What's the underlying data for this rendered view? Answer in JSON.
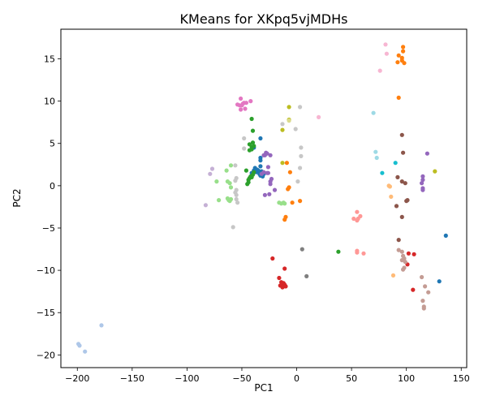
{
  "chart_data": {
    "type": "scatter",
    "title": "KMeans for XKpq5vjMDHs",
    "xlabel": "PC1",
    "ylabel": "PC2",
    "xlim": [
      -215,
      155
    ],
    "ylim": [
      -21.5,
      18.5
    ],
    "xticks": [
      -200,
      -150,
      -100,
      -50,
      0,
      50,
      100,
      150
    ],
    "yticks": [
      -20,
      -15,
      -10,
      -5,
      0,
      5,
      10,
      15
    ],
    "xtick_labels": [
      "−200",
      "−150",
      "−100",
      "−50",
      "0",
      "50",
      "100",
      "150"
    ],
    "ytick_labels": [
      "−20",
      "−15",
      "−10",
      "−5",
      "0",
      "5",
      "10",
      "15"
    ],
    "grid": false,
    "legend": false,
    "series": [
      {
        "color": "#1f77b4",
        "points": [
          [
            -33,
            5.6
          ],
          [
            -33,
            3.3
          ],
          [
            -33,
            2.3
          ],
          [
            -35,
            1.8
          ],
          [
            -37,
            1.6
          ],
          [
            -38,
            2.1
          ],
          [
            -36,
            1.9
          ],
          [
            -33,
            3.0
          ],
          [
            -33,
            1.2
          ],
          [
            -32,
            1.7
          ],
          [
            -31,
            1.1
          ],
          [
            -30,
            1.4
          ],
          [
            -34,
            1.4
          ],
          [
            -41,
            1.5
          ],
          [
            -39,
            1.8
          ],
          [
            -39,
            4.5
          ],
          [
            136,
            -5.9
          ],
          [
            130,
            -11.3
          ]
        ]
      },
      {
        "color": "#aec7e8",
        "points": [
          [
            -199,
            -18.7
          ],
          [
            -198,
            -18.9
          ],
          [
            -193,
            -19.6
          ],
          [
            -178,
            -16.5
          ]
        ]
      },
      {
        "color": "#ff7f0e",
        "points": [
          [
            -6,
            1.6
          ],
          [
            -9,
            2.7
          ],
          [
            -7,
            -0.2
          ],
          [
            -8,
            -0.4
          ],
          [
            -10,
            -3.7
          ],
          [
            -11,
            -4.0
          ],
          [
            -4,
            -2.0
          ],
          [
            3,
            -1.8
          ],
          [
            97,
            16.4
          ],
          [
            97,
            15.9
          ],
          [
            93,
            15.4
          ],
          [
            96,
            15.1
          ],
          [
            92,
            14.6
          ],
          [
            96,
            14.8
          ],
          [
            98,
            14.5
          ],
          [
            93,
            10.4
          ]
        ]
      },
      {
        "color": "#ffbb78",
        "points": [
          [
            84,
            0.0
          ],
          [
            85,
            -0.1
          ],
          [
            86,
            -1.3
          ],
          [
            88,
            -10.6
          ]
        ]
      },
      {
        "color": "#2ca02c",
        "points": [
          [
            -41,
            7.9
          ],
          [
            -40,
            6.5
          ],
          [
            -43,
            4.9
          ],
          [
            -40,
            5.1
          ],
          [
            -41,
            4.6
          ],
          [
            -41,
            4.3
          ],
          [
            -43,
            4.2
          ],
          [
            -39,
            4.7
          ],
          [
            -46,
            1.8
          ],
          [
            -44,
            0.4
          ],
          [
            -44,
            0.7
          ],
          [
            -43,
            0.9
          ],
          [
            -42,
            1.1
          ],
          [
            -40,
            1.3
          ],
          [
            -39,
            1.6
          ],
          [
            -41,
            1.0
          ],
          [
            -45,
            0.2
          ],
          [
            38,
            -7.8
          ]
        ]
      },
      {
        "color": "#98df8a",
        "points": [
          [
            -60,
            2.4
          ],
          [
            -64,
            1.8
          ],
          [
            -63,
            0.5
          ],
          [
            -61,
            0.3
          ],
          [
            -60,
            -0.2
          ],
          [
            -63,
            -1.5
          ],
          [
            -62,
            -1.7
          ],
          [
            -61,
            -1.8
          ],
          [
            -60,
            -1.6
          ],
          [
            -71,
            -1.7
          ],
          [
            -73,
            0.5
          ],
          [
            -16,
            -2.0
          ],
          [
            -14,
            -2.1
          ],
          [
            -12,
            -2.0
          ],
          [
            -11,
            -2.1
          ]
        ]
      },
      {
        "color": "#d62728",
        "points": [
          [
            -22,
            -8.6
          ],
          [
            -11,
            -9.8
          ],
          [
            -16,
            -10.9
          ],
          [
            -15,
            -11.8
          ],
          [
            -14,
            -11.4
          ],
          [
            -13,
            -11.7
          ],
          [
            -12,
            -11.5
          ],
          [
            -11,
            -11.7
          ],
          [
            -12,
            -11.9
          ],
          [
            -10,
            -11.9
          ],
          [
            -13,
            -12.0
          ],
          [
            102,
            -8.0
          ],
          [
            107,
            -8.1
          ],
          [
            101,
            -9.3
          ],
          [
            106,
            -12.3
          ]
        ]
      },
      {
        "color": "#ff9896",
        "points": [
          [
            55,
            -3.1
          ],
          [
            52,
            -3.9
          ],
          [
            56,
            -3.9
          ],
          [
            58,
            -3.6
          ],
          [
            55,
            -4.1
          ],
          [
            55,
            -7.7
          ],
          [
            55,
            -7.9
          ],
          [
            61,
            -8.0
          ]
        ]
      },
      {
        "color": "#9467bd",
        "points": [
          [
            -28,
            3.9
          ],
          [
            -29,
            3.6
          ],
          [
            -27,
            3.8
          ],
          [
            -24,
            3.6
          ],
          [
            -30,
            3.6
          ],
          [
            -26,
            2.2
          ],
          [
            -26,
            1.5
          ],
          [
            -30,
            1.6
          ],
          [
            -27,
            1.5
          ],
          [
            -32,
            1.4
          ],
          [
            -23,
            0.8
          ],
          [
            -24,
            0.2
          ],
          [
            -29,
            -1.1
          ],
          [
            -25,
            -1.0
          ],
          [
            -20,
            -0.5
          ],
          [
            -24,
            0.5
          ],
          [
            115,
            1.1
          ],
          [
            115,
            0.7
          ],
          [
            114,
            0.3
          ],
          [
            115,
            -0.3
          ],
          [
            115,
            -0.5
          ],
          [
            119,
            3.8
          ]
        ]
      },
      {
        "color": "#c5b0d5",
        "points": [
          [
            -83,
            -2.3
          ],
          [
            -79,
            1.4
          ],
          [
            -77,
            2.0
          ]
        ]
      },
      {
        "color": "#8c564b",
        "points": [
          [
            96,
            6.0
          ],
          [
            97,
            3.9
          ],
          [
            92,
            1.0
          ],
          [
            96,
            0.5
          ],
          [
            99,
            0.3
          ],
          [
            91,
            -2.4
          ],
          [
            100,
            -1.8
          ],
          [
            101,
            -1.7
          ],
          [
            96,
            -3.7
          ],
          [
            93,
            -6.4
          ]
        ]
      },
      {
        "color": "#c49c94",
        "points": [
          [
            93,
            -7.6
          ],
          [
            96,
            -7.8
          ],
          [
            97,
            -8.3
          ],
          [
            98,
            -8.6
          ],
          [
            96,
            -8.8
          ],
          [
            99,
            -9.0
          ],
          [
            98,
            -9.7
          ],
          [
            97,
            -9.9
          ],
          [
            114,
            -10.8
          ],
          [
            117,
            -11.9
          ],
          [
            120,
            -12.6
          ],
          [
            115,
            -13.6
          ],
          [
            116,
            -14.3
          ],
          [
            116,
            -14.5
          ]
        ]
      },
      {
        "color": "#e377c2",
        "points": [
          [
            -54,
            9.6
          ],
          [
            -52,
            9.5
          ],
          [
            -49,
            9.7
          ],
          [
            -50,
            9.5
          ],
          [
            -48,
            9.8
          ],
          [
            -47,
            9.1
          ],
          [
            -51,
            9.0
          ],
          [
            -51,
            10.3
          ],
          [
            -46,
            9.8
          ],
          [
            -42,
            10.0
          ]
        ]
      },
      {
        "color": "#f7b6d2",
        "points": [
          [
            81,
            16.7
          ],
          [
            82,
            15.6
          ],
          [
            76,
            13.6
          ],
          [
            20,
            8.1
          ]
        ]
      },
      {
        "color": "#7f7f7f",
        "points": [
          [
            5,
            -7.5
          ],
          [
            9,
            -10.7
          ]
        ]
      },
      {
        "color": "#c7c7c7",
        "points": [
          [
            -48,
            5.6
          ],
          [
            -48,
            4.4
          ],
          [
            -56,
            2.4
          ],
          [
            -55,
            0.9
          ],
          [
            -56,
            0.6
          ],
          [
            -55,
            -0.5
          ],
          [
            -56,
            -0.8
          ],
          [
            -55,
            -1.1
          ],
          [
            -55,
            -1.6
          ],
          [
            -54,
            -2.0
          ],
          [
            -58,
            -4.9
          ],
          [
            -1,
            6.7
          ],
          [
            3,
            9.3
          ],
          [
            4,
            4.5
          ],
          [
            4,
            3.5
          ],
          [
            3,
            2.1
          ],
          [
            1,
            0.5
          ],
          [
            -13,
            7.3
          ]
        ]
      },
      {
        "color": "#bcbd22",
        "points": [
          [
            -7,
            9.3
          ],
          [
            -13,
            6.6
          ],
          [
            -7,
            7.8
          ],
          [
            -13,
            2.7
          ],
          [
            126,
            1.7
          ]
        ]
      },
      {
        "color": "#dbdb8d",
        "points": [
          [
            -7,
            7.7
          ]
        ]
      },
      {
        "color": "#17becf",
        "points": [
          [
            90,
            2.7
          ],
          [
            78,
            1.5
          ]
        ]
      },
      {
        "color": "#9edae5",
        "points": [
          [
            70,
            8.6
          ],
          [
            72,
            4.0
          ],
          [
            73,
            3.3
          ]
        ]
      }
    ]
  }
}
